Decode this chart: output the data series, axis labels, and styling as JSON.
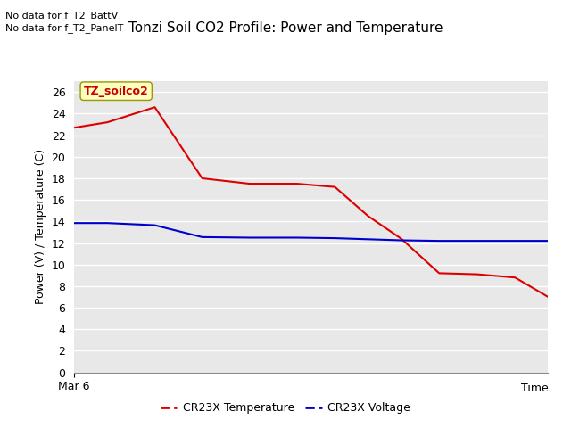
{
  "title": "Tonzi Soil CO2 Profile: Power and Temperature",
  "ylabel": "Power (V) / Temperature (C)",
  "xlabel": "Time",
  "xlim": [
    0,
    100
  ],
  "ylim": [
    0,
    27
  ],
  "yticks": [
    0,
    2,
    4,
    6,
    8,
    10,
    12,
    14,
    16,
    18,
    20,
    22,
    24,
    26
  ],
  "xticklabel": "Mar 6",
  "no_data_text1": "No data for f_T2_BattV",
  "no_data_text2": "No data for f_T2_PanelT",
  "label_box_text": "TZ_soilco2",
  "label_box_color": "#ffffc0",
  "label_box_edgecolor": "#999900",
  "label_text_color": "#cc0000",
  "red_line": {
    "x": [
      0,
      7,
      17,
      27,
      37,
      47,
      55,
      62,
      69,
      77,
      85,
      93,
      100
    ],
    "y": [
      22.7,
      23.2,
      24.6,
      18.0,
      17.5,
      17.5,
      17.2,
      14.5,
      12.4,
      9.2,
      9.1,
      8.8,
      7.0
    ],
    "color": "#dd0000",
    "linewidth": 1.5,
    "label": "CR23X Temperature"
  },
  "blue_line": {
    "x": [
      0,
      7,
      17,
      27,
      37,
      47,
      55,
      62,
      69,
      77,
      85,
      93,
      100
    ],
    "y": [
      13.85,
      13.85,
      13.65,
      12.55,
      12.5,
      12.5,
      12.45,
      12.35,
      12.25,
      12.2,
      12.2,
      12.2,
      12.2
    ],
    "color": "#0000cc",
    "linewidth": 1.5,
    "label": "CR23X Voltage"
  },
  "fig_bg_color": "#ffffff",
  "plot_bg_color": "#e8e8e8",
  "grid_color": "#ffffff",
  "grid_linewidth": 1.0
}
